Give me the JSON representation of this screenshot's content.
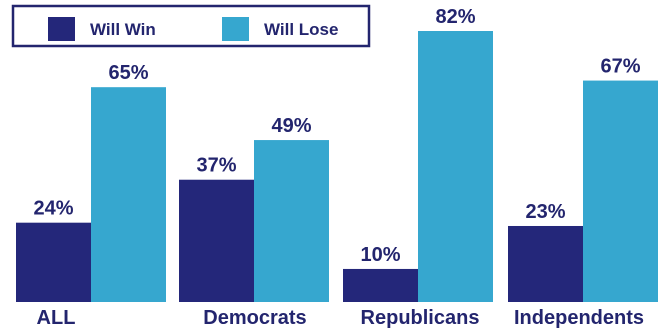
{
  "chart_data": {
    "type": "bar",
    "categories": [
      "ALL",
      "Democrats",
      "Republicans",
      "Independents"
    ],
    "series": [
      {
        "name": "Will Win",
        "values": [
          24,
          37,
          10,
          23
        ],
        "color": "#24277a"
      },
      {
        "name": "Will Lose",
        "values": [
          65,
          49,
          82,
          67
        ],
        "color": "#36a7cf"
      }
    ],
    "value_suffix": "%",
    "ylim": [
      0,
      82
    ],
    "grid": false,
    "legend_placement": "top-left",
    "text_color": "#23256e"
  }
}
